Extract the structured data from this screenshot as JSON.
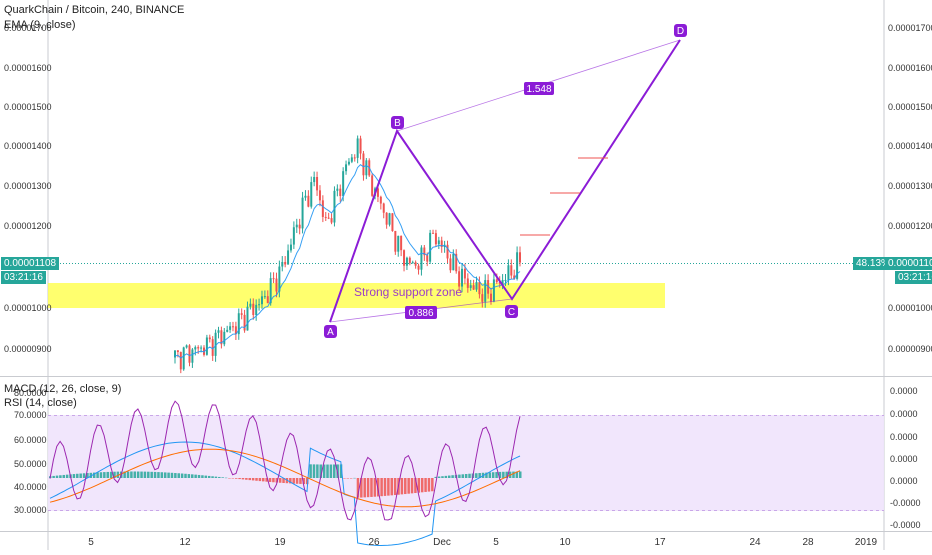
{
  "header": {
    "title": "QuarkChain / Bitcoin, 240, BINANCE",
    "indicator": "EMA (9, close)",
    "macd": "MACD (12, 26, close, 9)",
    "rsi": "RSI (14, close)"
  },
  "price_axis": {
    "ticks": [
      "0.00001700",
      "0.00001600",
      "0.00001500",
      "0.00001400",
      "0.00001300",
      "0.00001200",
      "0.00001000",
      "0.00000900"
    ],
    "current_price": "0.00001108",
    "countdown": "03:21:16",
    "pct_change": "48.13%"
  },
  "osc_axis": {
    "left_ticks": [
      "80.0000",
      "70.0000",
      "60.0000",
      "50.0000",
      "40.0000",
      "30.0000"
    ],
    "right_ticks": [
      "0.0000",
      "0.0000",
      "0.0000",
      "0.0000",
      "0.0000",
      "-0.0000",
      "-0.0000"
    ]
  },
  "time_axis": {
    "ticks": [
      "5",
      "12",
      "19",
      "26",
      "Dec",
      "5",
      "10",
      "17",
      "24",
      "28",
      "2019"
    ]
  },
  "annotations": {
    "support_zone": "Strong support zone",
    "ratio_bd": "1.548",
    "ratio_ac": "0.886",
    "point_a": "A",
    "point_b": "B",
    "point_c": "C",
    "point_d": "D"
  },
  "colors": {
    "up": "#26a69a",
    "down": "#ef5350",
    "pattern": "#8b1cd6",
    "support": "#ffff55",
    "rsi_band": "#efe3fc",
    "rsi_line": "#9c27b0",
    "macd_line": "#2196f3",
    "signal_line": "#ff6d00"
  },
  "chart_data": {
    "type": "candlestick",
    "pattern": {
      "A": 9.73e-06,
      "B": 1.435e-05,
      "C": 1.02e-05,
      "D": 1.665e-05,
      "BD_ratio": "1.548",
      "AC_ratio": "0.886"
    },
    "support_zone": [
      1e-05,
      1.06e-05
    ],
    "current_price": 1.108e-05,
    "ylim": [
      8.5e-06,
      1.76e-05
    ],
    "closes_sample": [
      8.7e-06,
      8.8e-06,
      8.9e-06,
      9e-06,
      9.2e-06,
      9.4e-06,
      9.6e-06,
      9.9e-06,
      1.01e-05,
      1.05e-05,
      1.1e-05,
      1.18e-05,
      1.26e-05,
      1.32e-05,
      1.2e-05,
      1.28e-05,
      1.36e-05,
      1.4e-05,
      1.32e-05,
      1.26e-05,
      1.2e-05,
      1.13e-05,
      1.1e-05,
      1.12e-05,
      1.18e-05,
      1.14e-05,
      1.09e-05,
      1.06e-05,
      1.04e-05,
      1.03e-05,
      1.06e-05,
      1.08e-05,
      1.11e-05
    ],
    "rsi_range": [
      30,
      80
    ],
    "rsi_bands": [
      30,
      70
    ]
  }
}
